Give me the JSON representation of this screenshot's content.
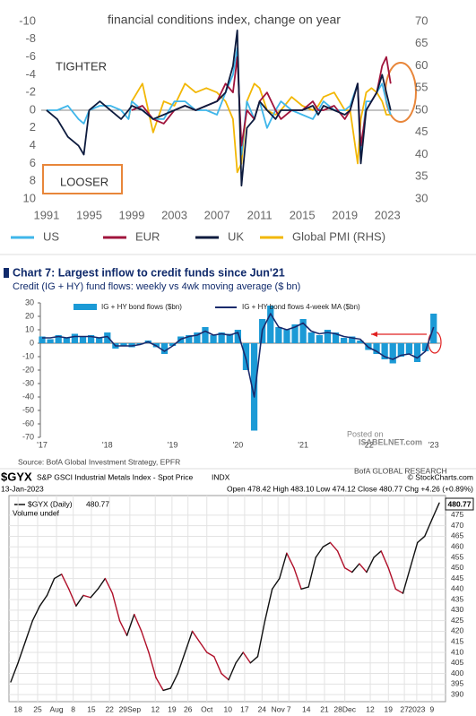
{
  "chart_data": [
    {
      "type": "line",
      "title": "financial conditions index, change on year",
      "annotations": [
        "TIGHTER",
        "LOOSER"
      ],
      "x": [
        1991,
        1992,
        1993,
        1994,
        1994.5,
        1995,
        1996,
        1997,
        1998,
        1998.7,
        1999,
        2000,
        2001,
        2002,
        2003,
        2004,
        2005,
        2006,
        2007,
        2007.8,
        2008.5,
        2008.9,
        2009.3,
        2009.8,
        2010.5,
        2011,
        2011.7,
        2012.5,
        2013,
        2014,
        2015,
        2016,
        2016.5,
        2017,
        2018,
        2019,
        2019.5,
        2020.2,
        2020.5,
        2021,
        2021.5,
        2022,
        2022.5,
        2022.9,
        2023.3
      ],
      "xlim": [
        1990.5,
        2025
      ],
      "xticks": [
        1991,
        1995,
        1999,
        2003,
        2007,
        2011,
        2015,
        2019,
        2023
      ],
      "ylim": [
        10,
        -10
      ],
      "yticks": [
        -10,
        -8,
        -6,
        -4,
        -2,
        0,
        2,
        4,
        6,
        8,
        10
      ],
      "y2lim": [
        30,
        70
      ],
      "y2ticks": [
        30,
        35,
        40,
        45,
        50,
        55,
        60,
        65,
        70
      ],
      "series": [
        {
          "name": "US",
          "color": "#3fb6ea",
          "values": [
            0,
            0,
            -0.5,
            1,
            1.5,
            0,
            -0.5,
            -0.5,
            0,
            1,
            -1,
            0,
            1,
            1,
            -1,
            -1,
            0,
            0,
            0.5,
            -2,
            -4,
            -7,
            5,
            -1,
            1,
            -1,
            2,
            0,
            -1,
            0,
            0.5,
            1,
            0,
            -1,
            0,
            0,
            -0.5,
            -3,
            5,
            -1,
            -1,
            -2,
            -3,
            -1,
            0.5
          ]
        },
        {
          "name": "EUR",
          "color": "#a0143c",
          "values": [
            null,
            null,
            null,
            null,
            null,
            null,
            null,
            null,
            null,
            null,
            0,
            -0.5,
            1,
            1.5,
            0,
            -0.5,
            0,
            -0.5,
            -1,
            -3,
            -2,
            -6,
            4,
            0,
            1,
            -1,
            -2,
            0,
            1,
            0,
            0,
            -1,
            0,
            0,
            -0.5,
            1,
            0,
            -3,
            4,
            0,
            -1,
            -2,
            -5,
            -6,
            -3
          ]
        },
        {
          "name": "UK",
          "color": "#0d1b3e",
          "values": [
            0,
            1,
            3,
            4,
            5,
            0,
            -1,
            0,
            1,
            0,
            -0.5,
            0,
            1,
            0.5,
            0,
            -0.5,
            0,
            -0.5,
            -1,
            -2,
            -5,
            -9,
            8.5,
            2,
            1,
            -1,
            0,
            1,
            0,
            0,
            0,
            -0.5,
            0.5,
            -0.5,
            0,
            0.5,
            0,
            -3,
            6,
            0,
            -1,
            -2,
            -4,
            -2,
            0
          ]
        },
        {
          "name": "Global PMI (RHS)",
          "color": "#f2b705",
          "axis": "y2",
          "values": [
            null,
            null,
            null,
            null,
            null,
            null,
            null,
            null,
            null,
            48,
            52,
            56,
            45,
            52,
            51,
            56,
            54,
            55,
            54,
            52,
            48,
            36,
            38,
            52,
            56,
            55,
            50,
            49,
            50,
            53,
            51,
            50,
            51,
            53,
            54,
            50,
            50,
            38,
            48,
            54,
            55,
            54,
            52,
            49,
            49
          ]
        }
      ]
    },
    {
      "type": "bar",
      "title": "Chart 7: Largest inflow to credit funds since Jun'21",
      "subtitle": "Credit (IG + HY) fund flows: weekly vs 4wk moving average ($ bn)",
      "source": "Source: BofA Global Investment Strategy, EPFR",
      "credit": "BofA GLOBAL RESEARCH",
      "watermark": [
        "Posted on",
        "ISABELNET.com"
      ],
      "x": [
        2017,
        2017.125,
        2017.25,
        2017.375,
        2017.5,
        2017.625,
        2017.75,
        2017.875,
        2018,
        2018.125,
        2018.25,
        2018.375,
        2018.5,
        2018.625,
        2018.75,
        2018.875,
        2019,
        2019.125,
        2019.25,
        2019.375,
        2019.5,
        2019.625,
        2019.75,
        2019.875,
        2020,
        2020.125,
        2020.25,
        2020.375,
        2020.5,
        2020.625,
        2020.75,
        2020.875,
        2021,
        2021.125,
        2021.25,
        2021.375,
        2021.5,
        2021.625,
        2021.75,
        2021.875,
        2022,
        2022.125,
        2022.25,
        2022.375,
        2022.5,
        2022.625,
        2022.75,
        2022.875,
        2023
      ],
      "xlim": [
        2017,
        2023.1
      ],
      "xticks": [
        {
          "value": 2017,
          "label": "'17"
        },
        {
          "value": 2018,
          "label": "'18"
        },
        {
          "value": 2019,
          "label": "'19"
        },
        {
          "value": 2020,
          "label": "'20"
        },
        {
          "value": 2021,
          "label": "'21"
        },
        {
          "value": 2022,
          "label": "'22"
        },
        {
          "value": 2023,
          "label": "'23"
        }
      ],
      "ylim": [
        -70,
        30
      ],
      "yticks": [
        -70,
        -60,
        -50,
        -40,
        -30,
        -20,
        -10,
        0,
        10,
        20,
        30
      ],
      "series": [
        {
          "name": "IG + HY bond flows ($bn)",
          "color": "#1b9ad6",
          "values": [
            5,
            3,
            6,
            4,
            7,
            5,
            6,
            4,
            8,
            -4,
            -2,
            -3,
            -1,
            2,
            -3,
            -8,
            -2,
            5,
            6,
            8,
            12,
            6,
            8,
            7,
            10,
            -20,
            -65,
            18,
            28,
            12,
            10,
            14,
            18,
            8,
            6,
            10,
            8,
            4,
            5,
            2,
            -5,
            -8,
            -12,
            -15,
            -10,
            -8,
            -14,
            -6,
            22
          ]
        },
        {
          "name": "IG + HY bond flows 4-week MA ($bn)",
          "color": "#1a2a6c",
          "type": "line",
          "values": [
            4,
            4,
            5,
            4,
            5,
            5,
            5,
            4,
            5,
            -2,
            -2,
            -2,
            -1,
            1,
            -2,
            -6,
            -2,
            3,
            5,
            6,
            9,
            6,
            7,
            6,
            8,
            -12,
            -40,
            10,
            22,
            12,
            10,
            12,
            15,
            9,
            7,
            8,
            7,
            5,
            4,
            3,
            -3,
            -6,
            -10,
            -12,
            -9,
            -8,
            -11,
            -6,
            12
          ]
        }
      ]
    },
    {
      "type": "line",
      "symbol": "$GYX",
      "title": "S&P GSCI Industrial Metals Index - Spot Price",
      "exchange": "INDX",
      "credit": "© StockCharts.com",
      "date": "13-Jan-2023",
      "quote": "Open 478.42 High 483.10 Low 474.12 Close 480.77 Chg +4.26 (+0.89%)",
      "volume_label": "Volume undef",
      "xlim": [
        0,
        59
      ],
      "xticks": [
        {
          "value": 1,
          "label": "18"
        },
        {
          "value": 3.7,
          "label": "25"
        },
        {
          "value": 6.3,
          "label": "Aug"
        },
        {
          "value": 8.6,
          "label": "8"
        },
        {
          "value": 11.1,
          "label": "15"
        },
        {
          "value": 13.6,
          "label": "22"
        },
        {
          "value": 16.4,
          "label": "29Sep"
        },
        {
          "value": 19.9,
          "label": "12"
        },
        {
          "value": 22.2,
          "label": "19"
        },
        {
          "value": 24.4,
          "label": "26"
        },
        {
          "value": 27,
          "label": "Oct"
        },
        {
          "value": 29.9,
          "label": "10"
        },
        {
          "value": 32.2,
          "label": "17"
        },
        {
          "value": 34.6,
          "label": "24"
        },
        {
          "value": 36.8,
          "label": "Nov"
        },
        {
          "value": 38.3,
          "label": "7"
        },
        {
          "value": 40.7,
          "label": "14"
        },
        {
          "value": 43.2,
          "label": "21"
        },
        {
          "value": 46,
          "label": "28Dec"
        },
        {
          "value": 49.5,
          "label": "12"
        },
        {
          "value": 52,
          "label": "19"
        },
        {
          "value": 54.2,
          "label": "27"
        },
        {
          "value": 55.9,
          "label": "2023"
        },
        {
          "value": 58,
          "label": "9"
        }
      ],
      "ylim": [
        387.5,
        482.6
      ],
      "yticks": [
        390,
        395,
        400,
        405,
        410,
        415,
        420,
        425,
        430,
        435,
        440,
        445,
        450,
        455,
        460,
        465,
        470,
        475
      ],
      "grid": true,
      "up_color": "#111111",
      "down_color": "#b0102a",
      "series": [
        {
          "name": "$GYX (Daily)",
          "color": "#111111",
          "values": [
            396,
            405,
            415,
            425,
            432,
            437,
            445,
            447,
            440,
            432,
            437,
            436,
            440,
            445,
            438,
            425,
            418,
            428,
            420,
            410,
            398,
            392,
            393,
            400,
            410,
            420,
            415,
            410,
            408,
            400,
            397,
            405,
            410,
            405,
            408,
            425,
            440,
            445,
            457,
            450,
            440,
            441,
            455,
            460,
            462,
            458,
            450,
            448,
            452,
            448,
            455,
            458,
            450,
            440,
            438,
            450,
            462,
            465,
            473,
            480.77
          ]
        }
      ]
    }
  ]
}
